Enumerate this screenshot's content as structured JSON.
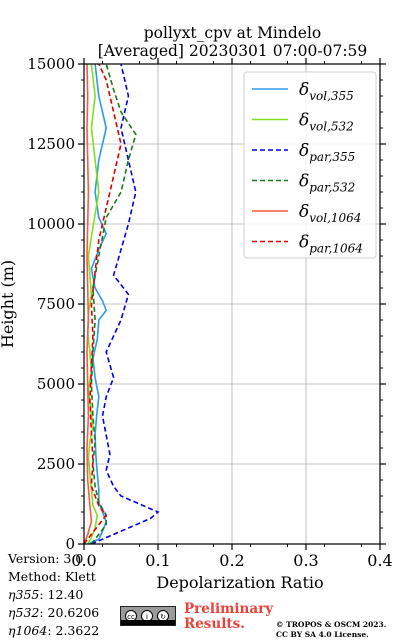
{
  "header": {
    "title_line1": "pollyxt_cpv at Mindelo",
    "title_line2": "[Averaged] 20230301 07:00-07:59"
  },
  "chart_data": {
    "type": "line",
    "xlabel": "Depolarization Ratio",
    "ylabel": "Height (m)",
    "xlim": [
      0,
      0.4
    ],
    "ylim": [
      0,
      15000
    ],
    "xticks": [
      "0.0",
      "0.1",
      "0.2",
      "0.3",
      "0.4"
    ],
    "yticks": [
      "0",
      "2500",
      "5000",
      "7500",
      "10000",
      "12500",
      "15000"
    ],
    "grid": true,
    "legend_position": "top-right",
    "legend": [
      {
        "key": "vol355",
        "main": "δ",
        "sub": "vol,355",
        "color": "#2c9ae8",
        "style": "solid"
      },
      {
        "key": "vol532",
        "main": "δ",
        "sub": "vol,532",
        "color": "#7fe01e",
        "style": "solid"
      },
      {
        "key": "par355",
        "main": "δ",
        "sub": "par,355",
        "color": "#0000ee",
        "style": "dashed"
      },
      {
        "key": "par532",
        "main": "δ",
        "sub": "par,532",
        "color": "#1a7a1a",
        "style": "dashed"
      },
      {
        "key": "vol1064",
        "main": "δ",
        "sub": "vol,1064",
        "color": "#ff5a3c",
        "style": "solid"
      },
      {
        "key": "par1064",
        "main": "δ",
        "sub": "par,1064",
        "color": "#dd0000",
        "style": "dashed"
      }
    ],
    "series": [
      {
        "name": "δvol,355",
        "key": "vol355",
        "points": [
          [
            0.005,
            0
          ],
          [
            0.02,
            150
          ],
          [
            0.025,
            400
          ],
          [
            0.03,
            700
          ],
          [
            0.025,
            1000
          ],
          [
            0.02,
            1300
          ],
          [
            0.02,
            1700
          ],
          [
            0.018,
            2200
          ],
          [
            0.016,
            2800
          ],
          [
            0.015,
            3400
          ],
          [
            0.017,
            4000
          ],
          [
            0.02,
            4600
          ],
          [
            0.015,
            5200
          ],
          [
            0.012,
            5800
          ],
          [
            0.018,
            6400
          ],
          [
            0.02,
            7000
          ],
          [
            0.03,
            7300
          ],
          [
            0.025,
            7600
          ],
          [
            0.015,
            8000
          ],
          [
            0.01,
            8600
          ],
          [
            0.02,
            9200
          ],
          [
            0.03,
            9700
          ],
          [
            0.02,
            10200
          ],
          [
            0.015,
            11000
          ],
          [
            0.02,
            12000
          ],
          [
            0.03,
            13000
          ],
          [
            0.02,
            14000
          ],
          [
            0.015,
            15000
          ]
        ]
      },
      {
        "name": "δvol,532",
        "key": "vol532",
        "points": [
          [
            0.005,
            0
          ],
          [
            0.01,
            200
          ],
          [
            0.015,
            500
          ],
          [
            0.018,
            900
          ],
          [
            0.012,
            1200
          ],
          [
            0.01,
            1700
          ],
          [
            0.008,
            2200
          ],
          [
            0.006,
            2700
          ],
          [
            0.008,
            3200
          ],
          [
            0.012,
            3700
          ],
          [
            0.009,
            4200
          ],
          [
            0.006,
            4800
          ],
          [
            0.01,
            5400
          ],
          [
            0.008,
            6000
          ],
          [
            0.005,
            6600
          ],
          [
            0.006,
            7200
          ],
          [
            0.01,
            7800
          ],
          [
            0.008,
            8400
          ],
          [
            0.006,
            9000
          ],
          [
            0.01,
            9600
          ],
          [
            0.015,
            10300
          ],
          [
            0.02,
            11000
          ],
          [
            0.015,
            12000
          ],
          [
            0.01,
            13000
          ],
          [
            0.015,
            14000
          ],
          [
            0.01,
            15000
          ]
        ]
      },
      {
        "name": "δpar,355",
        "key": "par355",
        "points": [
          [
            0.01,
            0
          ],
          [
            0.05,
            400
          ],
          [
            0.09,
            800
          ],
          [
            0.1,
            1000
          ],
          [
            0.08,
            1200
          ],
          [
            0.05,
            1500
          ],
          [
            0.04,
            1800
          ],
          [
            0.03,
            2300
          ],
          [
            0.035,
            2800
          ],
          [
            0.03,
            3400
          ],
          [
            0.025,
            4000
          ],
          [
            0.03,
            4600
          ],
          [
            0.04,
            5200
          ],
          [
            0.03,
            6000
          ],
          [
            0.05,
            7000
          ],
          [
            0.06,
            7800
          ],
          [
            0.04,
            8400
          ],
          [
            0.05,
            9200
          ],
          [
            0.06,
            10000
          ],
          [
            0.07,
            11000
          ],
          [
            0.06,
            12000
          ],
          [
            0.05,
            13000
          ],
          [
            0.06,
            14000
          ],
          [
            0.05,
            15000
          ]
        ]
      },
      {
        "name": "δpar,532",
        "key": "par532",
        "points": [
          [
            0.01,
            0
          ],
          [
            0.02,
            300
          ],
          [
            0.03,
            600
          ],
          [
            0.03,
            900
          ],
          [
            0.02,
            1300
          ],
          [
            0.015,
            1800
          ],
          [
            0.012,
            2500
          ],
          [
            0.015,
            3200
          ],
          [
            0.012,
            4000
          ],
          [
            0.01,
            5000
          ],
          [
            0.012,
            6000
          ],
          [
            0.015,
            7000
          ],
          [
            0.012,
            8000
          ],
          [
            0.02,
            9000
          ],
          [
            0.03,
            10200
          ],
          [
            0.05,
            11000
          ],
          [
            0.06,
            12000
          ],
          [
            0.07,
            12800
          ],
          [
            0.05,
            13500
          ],
          [
            0.04,
            14200
          ],
          [
            0.03,
            15000
          ]
        ]
      },
      {
        "name": "δvol,1064",
        "key": "vol1064",
        "points": [
          [
            0.0,
            0
          ],
          [
            0.005,
            300
          ],
          [
            0.01,
            700
          ],
          [
            0.008,
            1200
          ],
          [
            0.005,
            2000
          ],
          [
            0.004,
            3000
          ],
          [
            0.006,
            4000
          ],
          [
            0.005,
            5000
          ],
          [
            0.004,
            6000
          ],
          [
            0.006,
            7000
          ],
          [
            0.005,
            8000
          ],
          [
            0.004,
            9000
          ],
          [
            0.005,
            10000
          ],
          [
            0.006,
            11000
          ],
          [
            0.005,
            12000
          ],
          [
            0.004,
            13000
          ],
          [
            0.005,
            14000
          ],
          [
            0.004,
            15000
          ]
        ]
      },
      {
        "name": "δpar,1064",
        "key": "par1064",
        "points": [
          [
            0.0,
            0
          ],
          [
            0.01,
            300
          ],
          [
            0.02,
            600
          ],
          [
            0.03,
            900
          ],
          [
            0.02,
            1200
          ],
          [
            0.01,
            1800
          ],
          [
            0.012,
            2600
          ],
          [
            0.01,
            3500
          ],
          [
            0.008,
            4500
          ],
          [
            0.01,
            5500
          ],
          [
            0.012,
            6500
          ],
          [
            0.01,
            7500
          ],
          [
            0.015,
            8500
          ],
          [
            0.02,
            9500
          ],
          [
            0.03,
            10500
          ],
          [
            0.04,
            11500
          ],
          [
            0.05,
            12500
          ],
          [
            0.04,
            13500
          ],
          [
            0.03,
            14500
          ],
          [
            0.02,
            15000
          ]
        ]
      }
    ]
  },
  "meta": {
    "version": "Version: 3.0",
    "method": "Method: Klett",
    "eta355_label": "η355",
    "eta355_value": ":  12.40",
    "eta532_label": "η532",
    "eta532_value": ": 20.6206",
    "eta1064_label": "η1064",
    "eta1064_value": ": 2.3622"
  },
  "footer": {
    "cc_icons": [
      "cc-icon",
      "by-icon",
      "sa-icon"
    ],
    "preliminary_line1": "Preliminary",
    "preliminary_line2": "Results.",
    "credit_line1": "© TROPOS & OSCM 2023.",
    "credit_line2": "CC BY SA 4.0 License."
  }
}
